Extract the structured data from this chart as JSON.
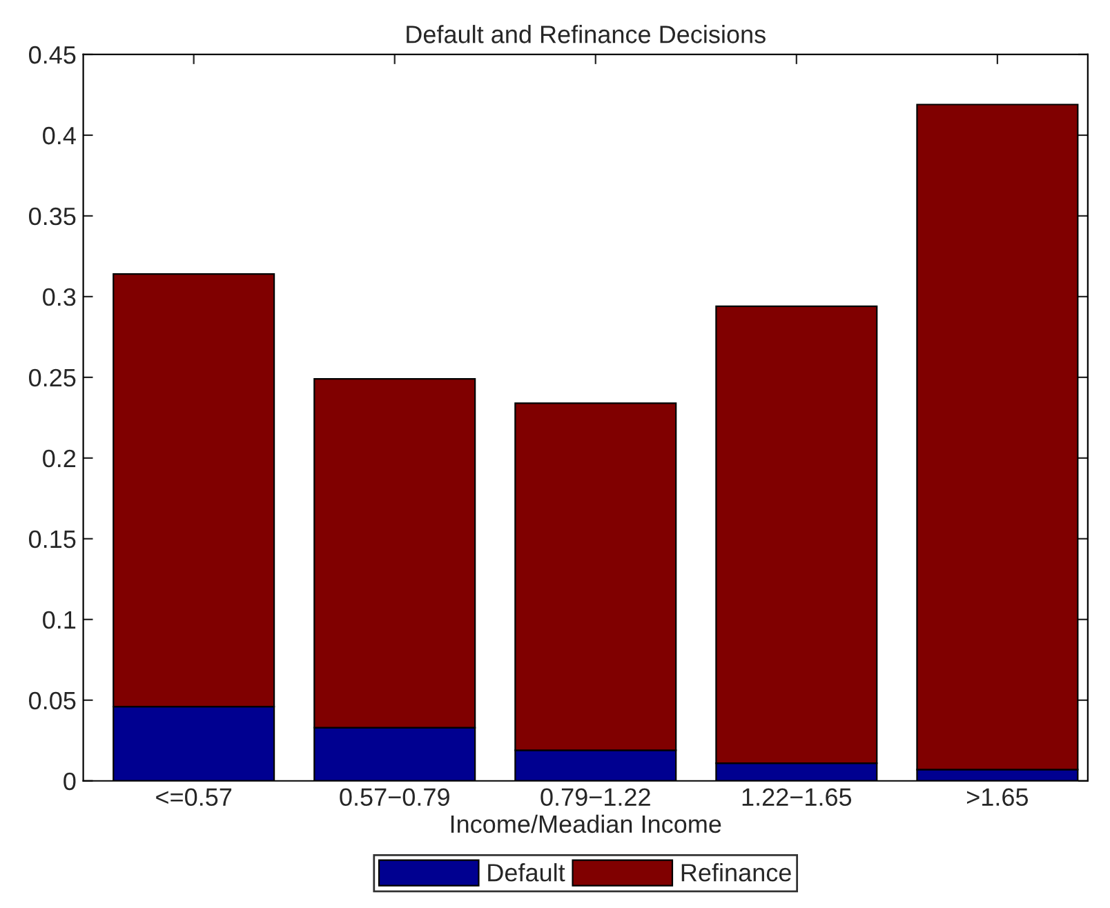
{
  "chart_data": {
    "type": "bar",
    "title": "Default and Refinance Decisions",
    "xlabel": "Income/Meadian Income",
    "categories": [
      "<=0.57",
      "0.57−0.79",
      "0.79−1.22",
      "1.22−1.65",
      ">1.65"
    ],
    "stacked": true,
    "series": [
      {
        "name": "Default",
        "color": "#000090",
        "values": [
          0.046,
          0.033,
          0.019,
          0.011,
          0.007
        ]
      },
      {
        "name": "Refinance",
        "color": "#800000",
        "values": [
          0.268,
          0.216,
          0.215,
          0.283,
          0.412
        ]
      }
    ],
    "ylim": [
      0,
      0.45
    ],
    "yticks": [
      0,
      0.05,
      0.1,
      0.15,
      0.2,
      0.25,
      0.3,
      0.35,
      0.4,
      0.45
    ],
    "grid": false,
    "legend": "bottom"
  }
}
